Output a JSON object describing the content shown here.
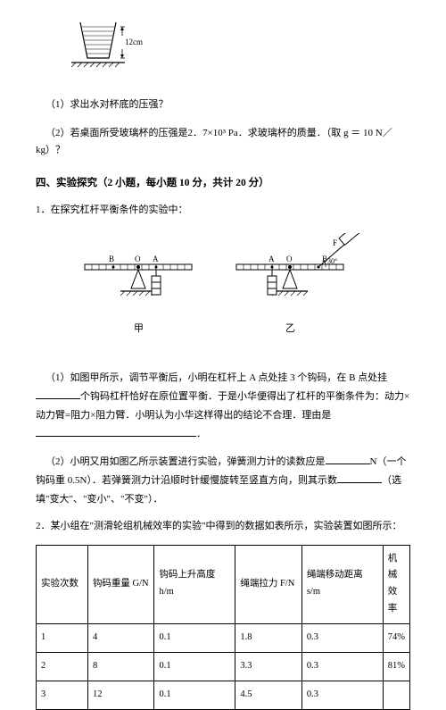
{
  "cup": {
    "label": "12cm"
  },
  "q1": "（1）求出水对杯底的压强？",
  "q2": "（2）若桌面所受玻璃杯的压强是2．7×10³ Pa．求玻璃杯的质量．（取 g ＝ 10 N／kg）？",
  "section4": "四、实验探究（2 小题，每小题 10 分，共计 20 分）",
  "p1": "1．在探究杠杆平衡条件的实验中：",
  "lever": {
    "labelB": "B",
    "labelO": "O",
    "labelA": "A",
    "labelF": "F",
    "angle": "30°",
    "leftName": "甲",
    "rightName": "乙"
  },
  "sub1_a": "（1）如图甲所示，调节平衡后，小明在杠杆上 A 点处挂 3 个钩码，在 B 点处挂",
  "sub1_b": "个钩码杠杆恰好在原位置平衡．于是小华便得出了杠杆的平衡条件为：动力×动力臂=阻力×阻力臂．小明认为小华这样得出的结论不合理．理由是",
  "sub1_c": "．",
  "sub2_a": "（2）小明又用如图乙所示装置进行实验，弹簧测力计的读数应是",
  "sub2_b": "N（一个钩码重 0.5N）．若弹簧测力计沿顺时针缓慢旋转至竖直方向，则其示数",
  "sub2_c": "（选填\"变大\"、\"变小\"、\"不变\"）．",
  "p2": "2．某小组在\"测滑轮组机械效率的实验\"中得到的数据如表所示，实验装置如图所示：",
  "table": {
    "headers": [
      "实验次数",
      "钩码重量 G/N",
      "钩码上升高度 h/m",
      "绳端拉力 F/N",
      "绳端移动距离 s/m",
      "机械效率"
    ],
    "rows": [
      [
        "1",
        "4",
        "0.1",
        "1.8",
        "0.3",
        "74%"
      ],
      [
        "2",
        "8",
        "0.1",
        "3.3",
        "0.3",
        "81%"
      ],
      [
        "3",
        "12",
        "0.1",
        "4.5",
        "0.3",
        ""
      ]
    ],
    "col_widths": [
      "14%",
      "18%",
      "22%",
      "18%",
      "22%",
      "14%"
    ]
  },
  "colors": {
    "text": "#000000",
    "bg": "#ffffff",
    "line": "#000000"
  }
}
